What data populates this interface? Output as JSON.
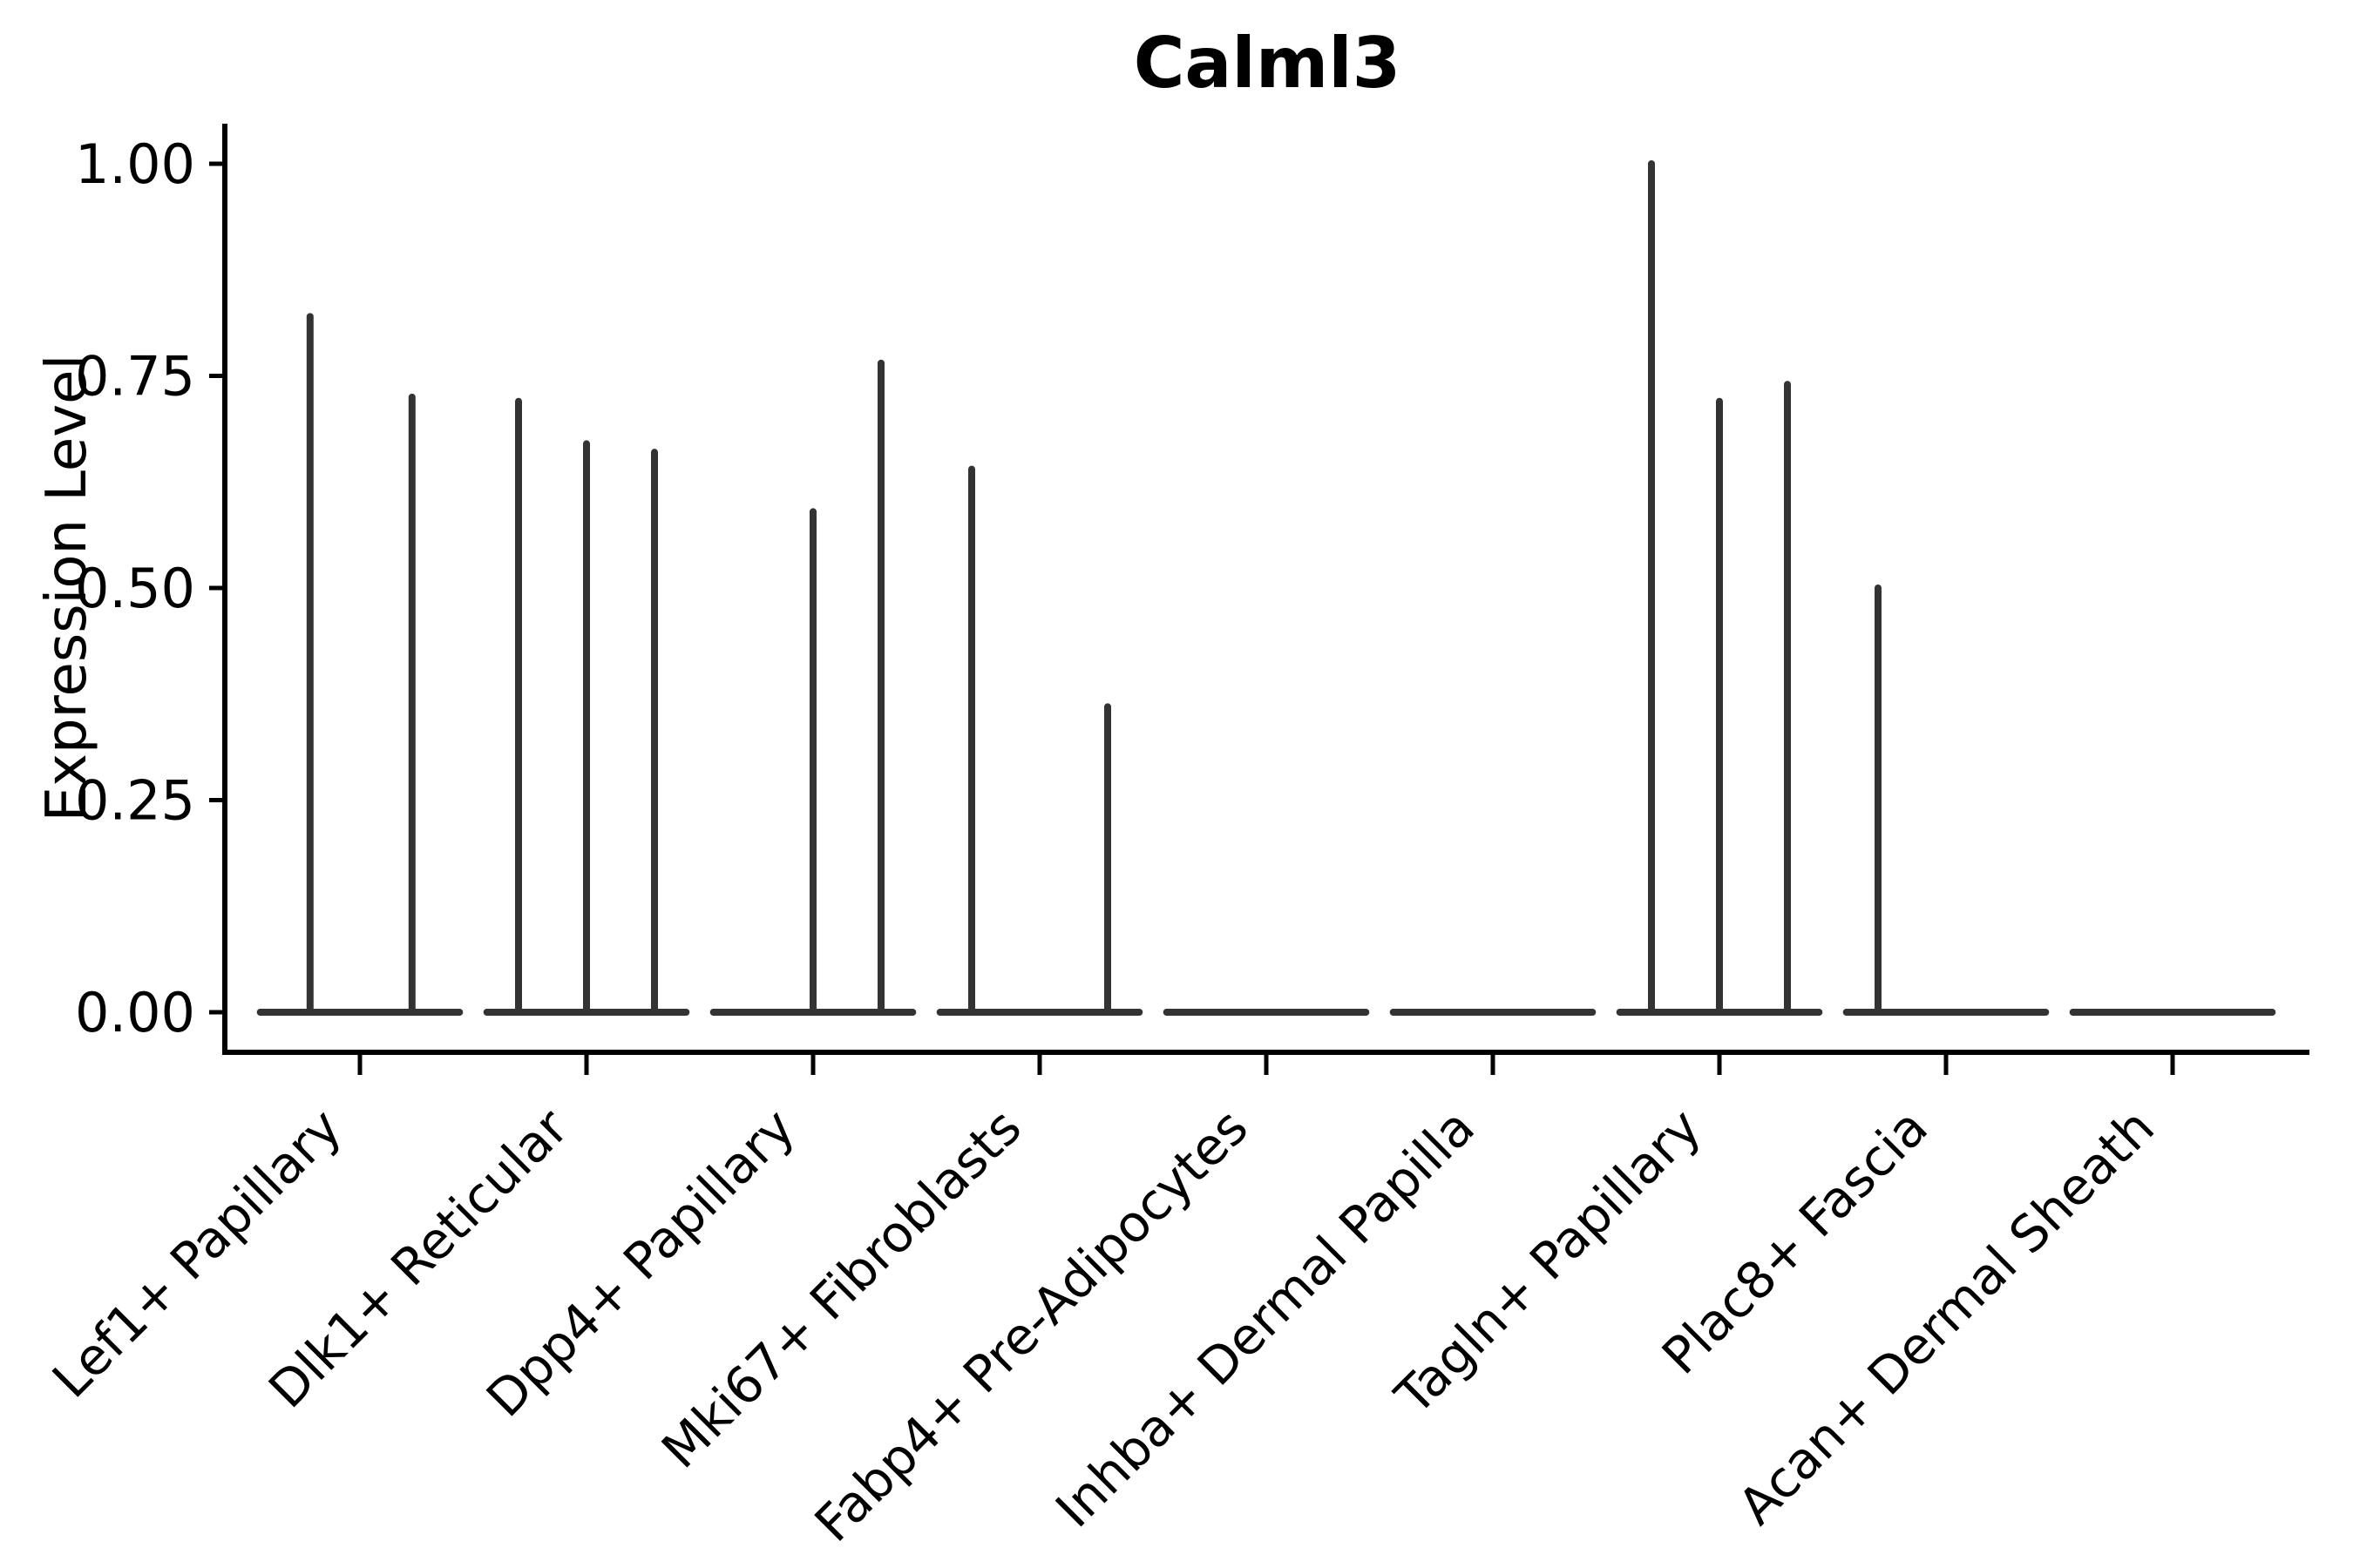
{
  "title": "Calml3",
  "chart_data": {
    "type": "violin",
    "title": "Calml3",
    "xlabel": "",
    "ylabel": "Expression Level",
    "ylim": [
      -0.05,
      1.05
    ],
    "xlim": [
      0.4,
      9.6
    ],
    "grid": false,
    "legend": false,
    "yticks": [
      0.0,
      0.25,
      0.5,
      0.75,
      1.0
    ],
    "ytick_labels": [
      "0.00",
      "0.25",
      "0.50",
      "0.75",
      "1.00"
    ],
    "categories": [
      "Lef1+ Papillary",
      "Dlk1+ Reticular",
      "Dpp4+ Papillary",
      "Mki67+ Fibroblasts",
      "Fabp4+ Pre-Adipocytes",
      "Inhba+ Dermal Papilla",
      "Tagln+ Papillary",
      "Plac8+ Fascia",
      "Acan+ Dermal Sheath"
    ],
    "violin_width": 0.91,
    "baseline_value": 0.0,
    "violins": [
      {
        "category": "Lef1+ Papillary",
        "spikes": [
          {
            "x_offset": -0.22,
            "value": 0.82
          },
          {
            "x_offset": 0.23,
            "value": 0.725
          }
        ]
      },
      {
        "category": "Dlk1+ Reticular",
        "spikes": [
          {
            "x_offset": -0.3,
            "value": 0.72
          },
          {
            "x_offset": 0.0,
            "value": 0.67
          },
          {
            "x_offset": 0.3,
            "value": 0.66
          }
        ]
      },
      {
        "category": "Dpp4+ Papillary",
        "spikes": [
          {
            "x_offset": 0.0,
            "value": 0.59
          },
          {
            "x_offset": 0.3,
            "value": 0.765
          }
        ]
      },
      {
        "category": "Mki67+ Fibroblasts",
        "spikes": [
          {
            "x_offset": -0.3,
            "value": 0.64
          },
          {
            "x_offset": 0.3,
            "value": 0.36
          }
        ]
      },
      {
        "category": "Fabp4+ Pre-Adipocytes",
        "spikes": []
      },
      {
        "category": "Inhba+ Dermal Papilla",
        "spikes": []
      },
      {
        "category": "Tagln+ Papillary",
        "spikes": [
          {
            "x_offset": -0.3,
            "value": 1.0
          },
          {
            "x_offset": 0.0,
            "value": 0.72
          },
          {
            "x_offset": 0.3,
            "value": 0.74
          }
        ]
      },
      {
        "category": "Plac8+ Fascia",
        "spikes": [
          {
            "x_offset": -0.3,
            "value": 0.5
          }
        ]
      },
      {
        "category": "Acan+ Dermal Sheath",
        "spikes": []
      }
    ],
    "colors": {
      "violin": "#333333",
      "axis": "#000000",
      "text": "#000000"
    }
  }
}
